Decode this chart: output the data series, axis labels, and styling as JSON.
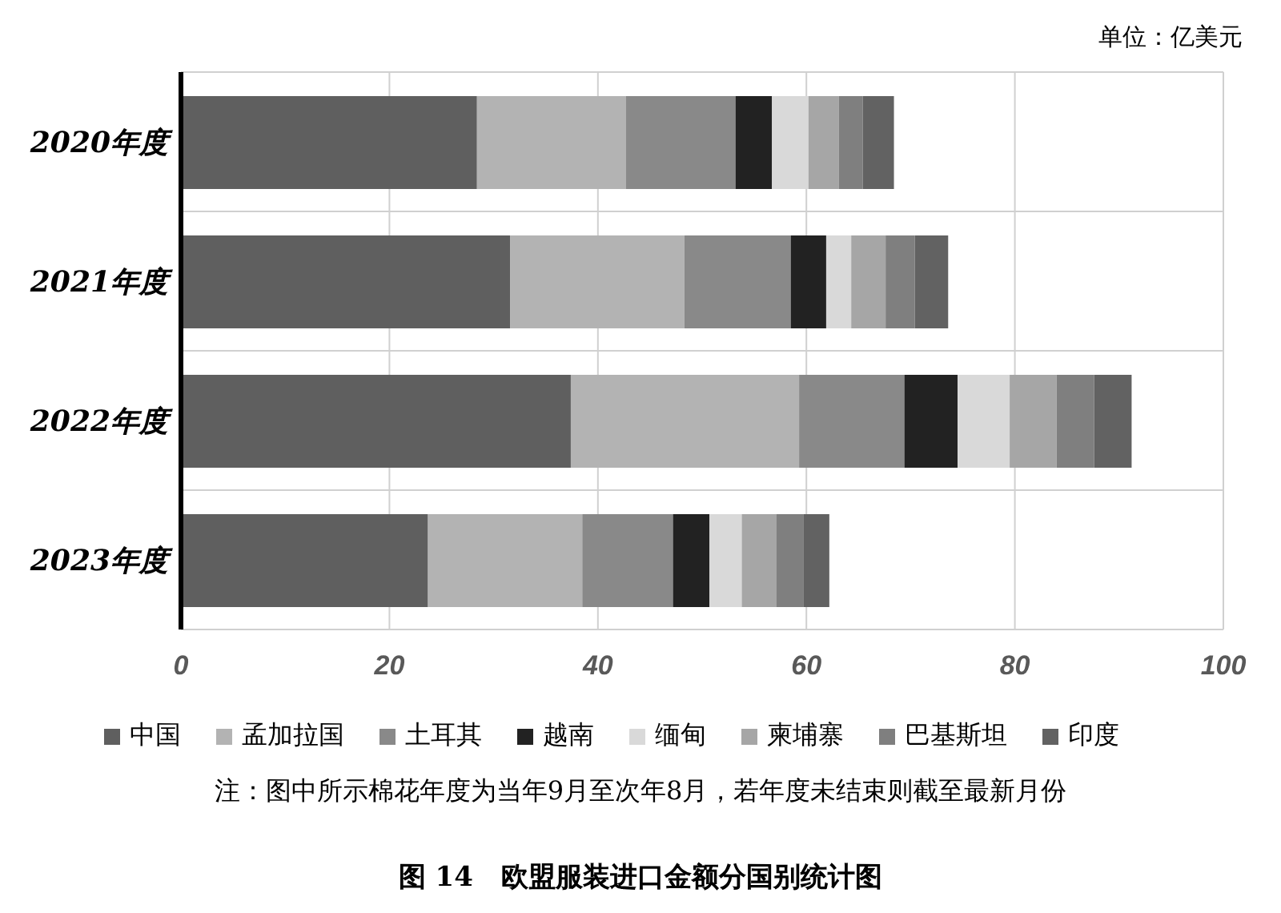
{
  "chart_data": {
    "type": "bar",
    "orientation": "horizontal",
    "stacked": true,
    "title": "图 14   欧盟服装进口金额分国别统计图",
    "xlabel": "单位：亿美元",
    "annotations": [
      "注：图中所示棉花年度为当年9月至次年8月，若年度未结束则截至最新月份"
    ],
    "categories": [
      "2020年度",
      "2021年度",
      "2022年度",
      "2023年度"
    ],
    "series": [
      {
        "name": "中国",
        "color": "#5f5f5f",
        "values": [
          28.4,
          31.6,
          37.4,
          23.7
        ]
      },
      {
        "name": "孟加拉国",
        "color": "#b3b3b3",
        "values": [
          14.3,
          16.7,
          21.9,
          14.8
        ]
      },
      {
        "name": "土耳其",
        "color": "#898989",
        "values": [
          10.5,
          10.2,
          10.1,
          8.7
        ]
      },
      {
        "name": "越南",
        "color": "#222222",
        "values": [
          3.5,
          3.4,
          5.1,
          3.5
        ]
      },
      {
        "name": "缅甸",
        "color": "#d9d9d9",
        "values": [
          3.5,
          2.4,
          5.0,
          3.1
        ]
      },
      {
        "name": "柬埔寨",
        "color": "#a6a6a6",
        "values": [
          2.9,
          3.3,
          4.5,
          3.3
        ]
      },
      {
        "name": "巴基斯坦",
        "color": "#7f7f7f",
        "values": [
          2.3,
          2.8,
          3.6,
          2.6
        ]
      },
      {
        "name": "印度",
        "color": "#626262",
        "values": [
          3.0,
          3.2,
          3.6,
          2.5
        ]
      }
    ],
    "xlim": [
      0,
      100
    ],
    "xticks": [
      0,
      20,
      40,
      60,
      80,
      100
    ],
    "grid": true,
    "legend": "bottom"
  }
}
